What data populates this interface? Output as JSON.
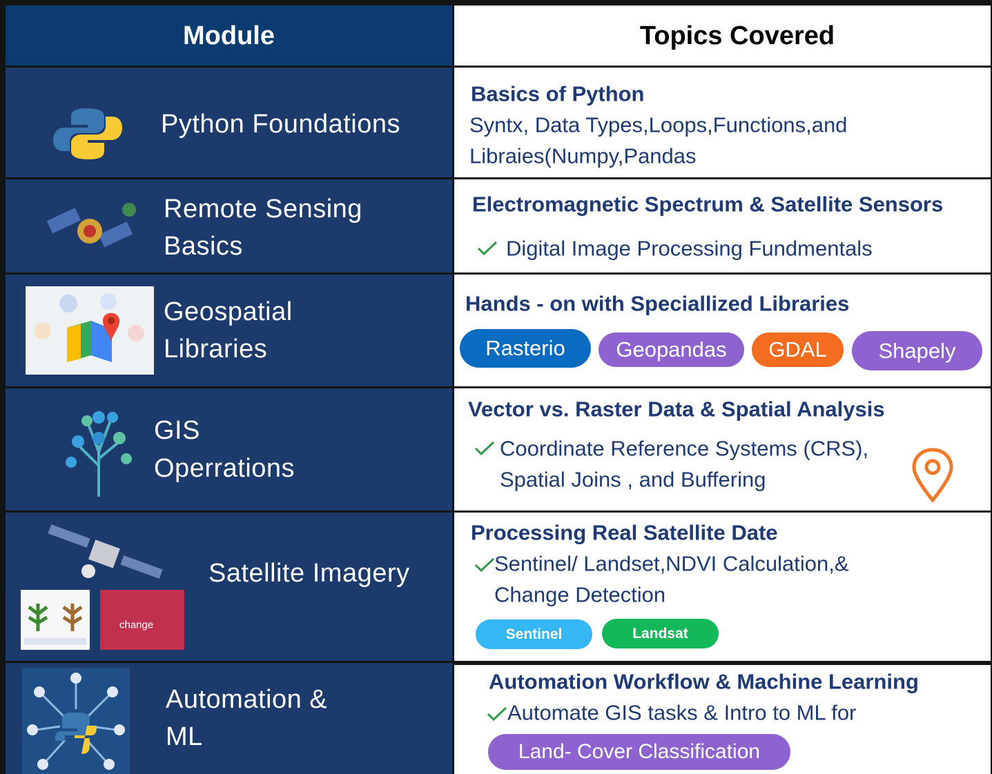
{
  "header": {
    "module": "Module",
    "topics": "Topics Covered"
  },
  "rows": [
    {
      "module": [
        "Python Foundations"
      ],
      "heading": "Basics of Python",
      "lines": [
        "Syntx, Data Types,Loops,Functions,and",
        "Libraies(Numpy,Pandas"
      ],
      "tags": []
    },
    {
      "module": [
        "Remote Sensing",
        "Basics"
      ],
      "heading": "Electromagnetic Spectrum & Satellite Sensors",
      "lines": [
        "Digital Image Processing Fundmentals"
      ],
      "tags": []
    },
    {
      "module": [
        "Geospatial",
        "Libraries"
      ],
      "heading": "Hands - on with Speciallized Libraries",
      "lines": [],
      "tags": [
        "Rasterio",
        "Geopandas",
        "GDAL",
        "Shapely"
      ]
    },
    {
      "module": [
        "GIS",
        "Operrations"
      ],
      "heading": "Vector vs. Raster Data & Spatial Analysis",
      "lines": [
        "Coordinate Reference Systems (CRS),",
        "Spatial Joins , and Buffering"
      ],
      "tags": []
    },
    {
      "module": [
        "Satellite Imagery"
      ],
      "heading": "Processing Real Satellite Date",
      "lines": [
        "Sentinel/ Landset,NDVI Calculation,&",
        "Change Detection"
      ],
      "tags": [
        "Sentinel",
        "Landsat"
      ],
      "image_caption": "change"
    },
    {
      "module": [
        "Automation &",
        "ML"
      ],
      "heading": "Automation Workflow & Machine Learning",
      "lines": [
        "Automate GIS tasks & Intro to ML for"
      ],
      "tags": [
        "Land- Cover Classification"
      ]
    }
  ]
}
